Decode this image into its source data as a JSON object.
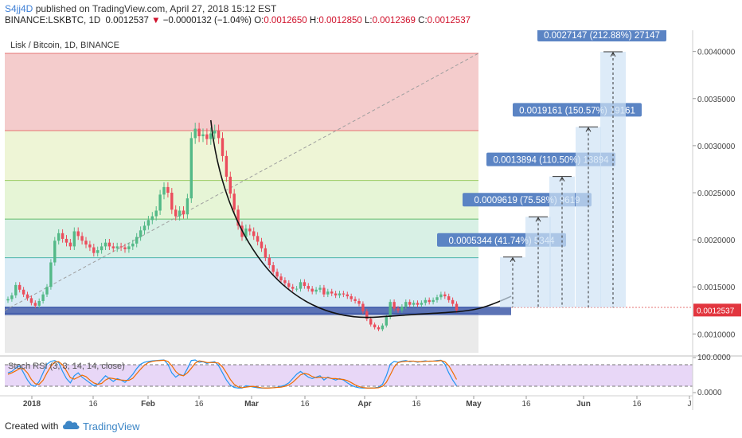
{
  "header": {
    "author": "S4jj4D",
    "published": "published on TradingView.com, April 27, 2018 15:12 EST",
    "symbol": "BINANCE:LSKBTC, 1D",
    "last": "0.0012537",
    "change": "−0.0000132 (−1.04%)",
    "o_label": "O:",
    "o_value": "0.0012650",
    "h_label": "H:",
    "h_value": "0.0012850",
    "l_label": "L:",
    "l_value": "0.0012369",
    "c_label": "C:",
    "c_value": "0.0012537"
  },
  "chart_title": "Lisk / Bitcoin, 1D, BINANCE",
  "rsi_label": "Stoch RSI (3, 3, 14, 14, close)",
  "price_badge": "0.0012537",
  "footer": {
    "created": "Created with",
    "brand": "TradingView"
  },
  "colors": {
    "up": "#53b987",
    "down": "#eb4d5c",
    "accent": "#3d7fd6",
    "badge": "#e2363f"
  },
  "chart_data": {
    "type": "candlestick",
    "title": "Lisk / Bitcoin, 1D, BINANCE",
    "x_ticks": [
      "2018",
      "16",
      "Feb",
      "16",
      "Mar",
      "16",
      "Apr",
      "16",
      "May",
      "16",
      "Jun",
      "16",
      "J"
    ],
    "y_ticks": [
      "0.0040000",
      "0.0035000",
      "0.0030000",
      "0.0025000",
      "0.0020000",
      "0.0015000",
      "0.0010000"
    ],
    "y_range": [
      0.0008,
      0.0042
    ],
    "fib_levels": [
      0.00398,
      0.00316,
      0.00263,
      0.00222,
      0.00181,
      0.00128,
      0.00122
    ],
    "targets": [
      {
        "label": "0.0005344 (41.74%) 5344",
        "top": 0.0018169
      },
      {
        "label": "0.0009619 (75.58%) 9619",
        "top": 0.0022444
      },
      {
        "label": "0.0013894 (110.50%) 13894",
        "top": 0.0026719
      },
      {
        "label": "0.0019161 (150.57%) 19161",
        "top": 0.0031986
      },
      {
        "label": "0.0027147 (212.88%) 27147",
        "top": 0.0039972
      }
    ],
    "target_base": 0.0012825,
    "close_series": [
      0.00137,
      0.00141,
      0.00152,
      0.00147,
      0.00142,
      0.00138,
      0.00133,
      0.0013,
      0.00135,
      0.00142,
      0.0015,
      0.00176,
      0.00199,
      0.00207,
      0.00201,
      0.00197,
      0.00193,
      0.00209,
      0.00204,
      0.00199,
      0.00195,
      0.00192,
      0.00186,
      0.00189,
      0.00193,
      0.00197,
      0.00193,
      0.00191,
      0.00193,
      0.00192,
      0.0019,
      0.00193,
      0.00196,
      0.00203,
      0.0021,
      0.00215,
      0.00221,
      0.00225,
      0.00231,
      0.00248,
      0.00256,
      0.0025,
      0.00232,
      0.00225,
      0.00231,
      0.00227,
      0.00244,
      0.00308,
      0.00318,
      0.0031,
      0.00312,
      0.00307,
      0.00313,
      0.00316,
      0.00308,
      0.00289,
      0.00267,
      0.00249,
      0.00232,
      0.00215,
      0.00203,
      0.00212,
      0.00209,
      0.00204,
      0.00198,
      0.00191,
      0.00181,
      0.00173,
      0.00166,
      0.00161,
      0.00157,
      0.00154,
      0.0015,
      0.00148,
      0.00148,
      0.00155,
      0.00151,
      0.00148,
      0.00145,
      0.00147,
      0.00149,
      0.00142,
      0.00145,
      0.00143,
      0.00141,
      0.00143,
      0.00142,
      0.0014,
      0.00137,
      0.00135,
      0.00132,
      0.00124,
      0.00116,
      0.0011,
      0.00107,
      0.00105,
      0.00109,
      0.00118,
      0.00134,
      0.00127,
      0.00125,
      0.00129,
      0.00134,
      0.00131,
      0.00133,
      0.00131,
      0.00133,
      0.00136,
      0.00134,
      0.00136,
      0.00139,
      0.00142,
      0.0014,
      0.00136,
      0.00132,
      0.00125
    ],
    "stoch_k": [
      0.55,
      0.6,
      0.72,
      0.8,
      0.55,
      0.3,
      0.12,
      0.08,
      0.25,
      0.55,
      0.85,
      0.95,
      0.98,
      0.9,
      0.6,
      0.35,
      0.2,
      0.45,
      0.55,
      0.4,
      0.3,
      0.2,
      0.1,
      0.15,
      0.3,
      0.45,
      0.35,
      0.25,
      0.35,
      0.3,
      0.22,
      0.35,
      0.5,
      0.7,
      0.85,
      0.92,
      0.95,
      0.97,
      0.98,
      0.99,
      1.0,
      0.85,
      0.55,
      0.4,
      0.5,
      0.45,
      0.7,
      0.98,
      1.0,
      0.92,
      0.94,
      0.88,
      0.92,
      0.94,
      0.8,
      0.55,
      0.3,
      0.12,
      0.04,
      0.02,
      0.02,
      0.1,
      0.08,
      0.05,
      0.03,
      0.02,
      0.02,
      0.03,
      0.03,
      0.05,
      0.08,
      0.12,
      0.2,
      0.35,
      0.5,
      0.6,
      0.5,
      0.4,
      0.35,
      0.4,
      0.45,
      0.3,
      0.4,
      0.35,
      0.3,
      0.35,
      0.3,
      0.2,
      0.12,
      0.06,
      0.03,
      0.02,
      0.02,
      0.02,
      0.03,
      0.05,
      0.15,
      0.45,
      0.85,
      0.95,
      0.92,
      0.96,
      0.98,
      0.94,
      0.96,
      0.92,
      0.95,
      0.97,
      0.95,
      0.96,
      0.98,
      0.99,
      0.85,
      0.55,
      0.3,
      0.1
    ],
    "stoch_d": [
      0.5,
      0.55,
      0.62,
      0.7,
      0.69,
      0.55,
      0.32,
      0.17,
      0.15,
      0.29,
      0.55,
      0.78,
      0.93,
      0.94,
      0.83,
      0.62,
      0.38,
      0.33,
      0.4,
      0.47,
      0.42,
      0.3,
      0.2,
      0.15,
      0.18,
      0.3,
      0.37,
      0.35,
      0.32,
      0.3,
      0.29,
      0.29,
      0.36,
      0.52,
      0.68,
      0.82,
      0.91,
      0.95,
      0.97,
      0.98,
      0.99,
      0.95,
      0.8,
      0.6,
      0.48,
      0.45,
      0.55,
      0.71,
      0.89,
      0.97,
      0.95,
      0.91,
      0.91,
      0.91,
      0.89,
      0.76,
      0.55,
      0.32,
      0.15,
      0.06,
      0.03,
      0.05,
      0.07,
      0.08,
      0.05,
      0.03,
      0.02,
      0.02,
      0.03,
      0.04,
      0.05,
      0.08,
      0.13,
      0.22,
      0.35,
      0.48,
      0.53,
      0.5,
      0.42,
      0.38,
      0.4,
      0.38,
      0.38,
      0.35,
      0.35,
      0.33,
      0.32,
      0.28,
      0.21,
      0.13,
      0.07,
      0.04,
      0.02,
      0.02,
      0.02,
      0.03,
      0.08,
      0.22,
      0.48,
      0.75,
      0.91,
      0.94,
      0.95,
      0.96,
      0.96,
      0.94,
      0.94,
      0.95,
      0.96,
      0.96,
      0.96,
      0.98,
      0.94,
      0.8,
      0.57,
      0.32
    ],
    "rsi_ticks": [
      "100.0000",
      "0.0000"
    ]
  }
}
